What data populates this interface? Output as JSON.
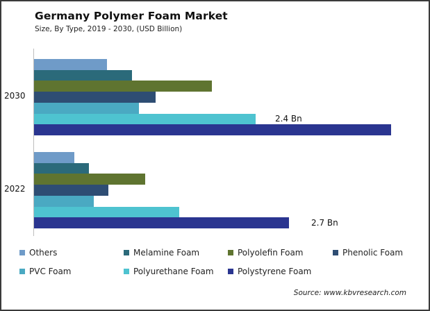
{
  "header": {
    "title": "Germany Polymer Foam Market",
    "subtitle": "Size, By Type, 2019 - 2030, (USD Billion)"
  },
  "source": "Source: www.kbvresearch.com",
  "legend": [
    {
      "label": "Others",
      "color": "#6f9bc8"
    },
    {
      "label": "Melamine Foam",
      "color": "#2b6a7a"
    },
    {
      "label": "Polyolefin Foam",
      "color": "#5f7430"
    },
    {
      "label": "Phenolic Foam",
      "color": "#2e4d73"
    },
    {
      "label": "PVC Foam",
      "color": "#4aa9c2"
    },
    {
      "label": "Polyurethane Foam",
      "color": "#4ec3d0"
    },
    {
      "label": "Polystyrene Foam",
      "color": "#2a3590"
    }
  ],
  "data_labels": {
    "y2030": "2.4 Bn",
    "y2022": "2.7 Bn"
  },
  "chart_data": {
    "type": "bar",
    "orientation": "horizontal",
    "title": "Germany Polymer Foam Market",
    "subtitle": "Size, By Type, 2019 - 2030, (USD Billion)",
    "xlabel": "",
    "ylabel": "",
    "categories": [
      "2030",
      "2022"
    ],
    "series": [
      {
        "name": "Others",
        "color": "#6f9bc8",
        "values": [
          0.77,
          0.43
        ]
      },
      {
        "name": "Melamine Foam",
        "color": "#2b6a7a",
        "values": [
          1.04,
          0.58
        ]
      },
      {
        "name": "Polyolefin Foam",
        "color": "#5f7430",
        "values": [
          1.88,
          1.18
        ]
      },
      {
        "name": "Phenolic Foam",
        "color": "#2e4d73",
        "values": [
          1.29,
          0.79
        ]
      },
      {
        "name": "PVC Foam",
        "color": "#4aa9c2",
        "values": [
          1.11,
          0.63
        ]
      },
      {
        "name": "Polyurethane Foam",
        "color": "#4ec3d0",
        "values": [
          2.35,
          1.54
        ]
      },
      {
        "name": "Polystyrene Foam",
        "color": "#2a3590",
        "values": [
          3.78,
          2.7
        ]
      }
    ],
    "annotations": [
      {
        "category": "2030",
        "series": "Polyurethane Foam",
        "text": "2.4 Bn"
      },
      {
        "category": "2022",
        "series": "Polystyrene Foam",
        "text": "2.7 Bn"
      }
    ],
    "grid": false,
    "legend_position": "bottom",
    "source": "Source: www.kbvresearch.com"
  }
}
